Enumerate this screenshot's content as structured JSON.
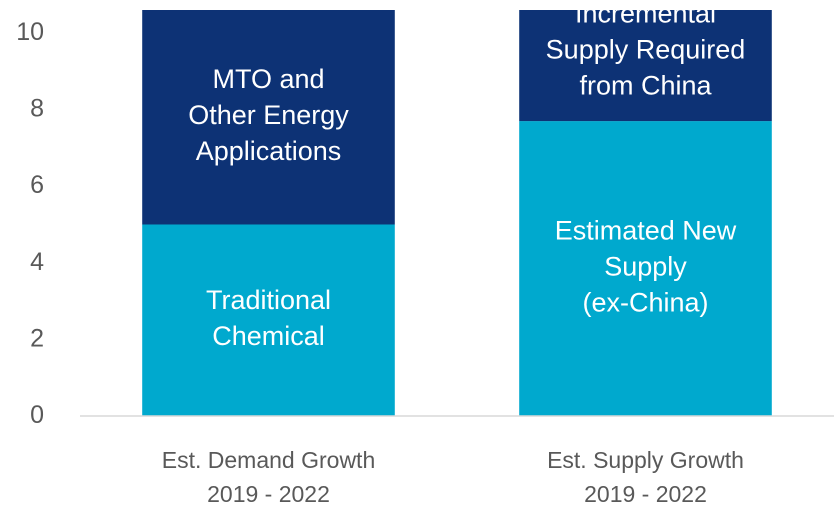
{
  "chart_data": {
    "type": "stacked_bar",
    "categories": [
      "Est. Demand Growth\n2019 - 2022",
      "Est. Supply Growth\n2019 - 2022"
    ],
    "series": [
      {
        "name": "Traditional\nChemical",
        "color": "#00a9ce",
        "values": [
          5.0,
          null
        ]
      },
      {
        "name": "MTO and\nOther Energy\nApplications",
        "color": "#0d3275",
        "values": [
          5.6,
          null
        ]
      },
      {
        "name": "Estimated New\nSupply\n(ex-China)",
        "color": "#00a9ce",
        "values": [
          null,
          7.7
        ]
      },
      {
        "name": "Incremental\nSupply Required\nfrom China",
        "color": "#0d3275",
        "values": [
          null,
          2.9
        ]
      }
    ],
    "ylim": [
      0,
      10.6
    ],
    "yticks": [
      0,
      2,
      4,
      6,
      8,
      10
    ],
    "grid": false
  }
}
